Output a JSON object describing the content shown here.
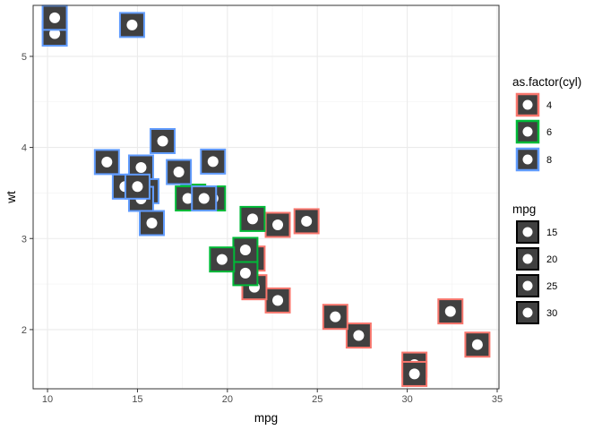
{
  "chart_data": {
    "type": "scatter",
    "xlabel": "mpg",
    "ylabel": "wt",
    "xlim": [
      9.2,
      35.1
    ],
    "ylim": [
      1.35,
      5.56
    ],
    "x_ticks": [
      10,
      15,
      20,
      25,
      30,
      35
    ],
    "y_ticks": [
      2,
      3,
      4,
      5
    ],
    "grid": true,
    "legend_position": "right",
    "series": [
      {
        "name": "4",
        "color": "#F8766D",
        "points": [
          [
            22.8,
            2.32
          ],
          [
            24.4,
            3.19
          ],
          [
            22.8,
            3.15
          ],
          [
            32.4,
            2.2
          ],
          [
            30.4,
            1.615
          ],
          [
            33.9,
            1.835
          ],
          [
            21.5,
            2.465
          ],
          [
            27.3,
            1.935
          ],
          [
            26.0,
            2.14
          ],
          [
            30.4,
            1.513
          ],
          [
            21.4,
            2.78
          ]
        ]
      },
      {
        "name": "6",
        "color": "#00BA38",
        "points": [
          [
            21.0,
            2.62
          ],
          [
            21.0,
            2.875
          ],
          [
            21.4,
            3.215
          ],
          [
            18.1,
            3.46
          ],
          [
            19.2,
            3.44
          ],
          [
            17.8,
            3.44
          ],
          [
            19.7,
            2.77
          ]
        ]
      },
      {
        "name": "8",
        "color": "#619CFF",
        "points": [
          [
            18.7,
            3.44
          ],
          [
            14.3,
            3.57
          ],
          [
            16.4,
            4.07
          ],
          [
            17.3,
            3.73
          ],
          [
            15.2,
            3.78
          ],
          [
            10.4,
            5.25
          ],
          [
            10.4,
            5.424
          ],
          [
            14.7,
            5.345
          ],
          [
            15.5,
            3.52
          ],
          [
            15.2,
            3.435
          ],
          [
            13.3,
            3.84
          ],
          [
            19.2,
            3.845
          ],
          [
            15.8,
            3.17
          ],
          [
            15.0,
            3.57
          ]
        ]
      }
    ],
    "legends": [
      {
        "title": "as.factor(cyl)",
        "entries": [
          {
            "label": "4",
            "color": "#F8766D"
          },
          {
            "label": "6",
            "color": "#00BA38"
          },
          {
            "label": "8",
            "color": "#619CFF"
          }
        ]
      },
      {
        "title": "mpg",
        "entries": [
          {
            "label": "15",
            "color": "#000000"
          },
          {
            "label": "20",
            "color": "#000000"
          },
          {
            "label": "25",
            "color": "#000000"
          },
          {
            "label": "30",
            "color": "#000000"
          }
        ]
      }
    ]
  }
}
